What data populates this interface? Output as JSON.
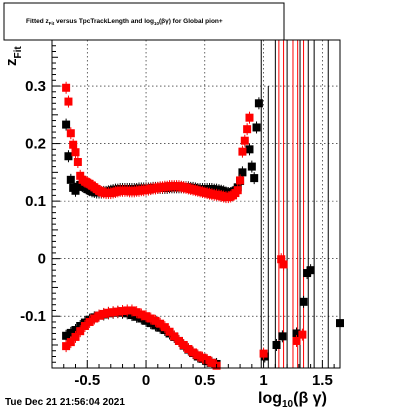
{
  "chart_data": {
    "type": "scatter",
    "title_parts": {
      "prefix": "Fitted  z",
      "sub1": "Fit",
      "middle": " versus TpcTrackLength and log",
      "sub2": "10",
      "suffix": "(βγ) for Global pion+"
    },
    "ylabel_main": "z",
    "ylabel_sub": "Fit",
    "xlabel_main": "log",
    "xlabel_sub": "10",
    "xlabel_suffix": "(β γ)",
    "xlim": [
      -0.8,
      1.65
    ],
    "ylim": [
      -0.19,
      0.38
    ],
    "x_ticks": [
      -0.5,
      0,
      0.5,
      1,
      1.5
    ],
    "x_tick_labels": [
      "-0.5",
      "0",
      "0.5",
      "1",
      "1.5"
    ],
    "y_ticks": [
      -0.1,
      0,
      0.1,
      0.2,
      0.3
    ],
    "y_tick_labels": [
      "-0.1",
      "0",
      "0.1",
      "0.2",
      "0.3"
    ],
    "grid": true,
    "timestamp": "Tue Dec 21 21:56:04 2021",
    "series": [
      {
        "color": "#000000",
        "marker": "square",
        "points": [
          [
            -0.68,
            0.233
          ],
          [
            -0.66,
            0.178
          ],
          [
            -0.64,
            0.137
          ],
          [
            -0.62,
            0.123
          ],
          [
            -0.6,
            0.118
          ],
          [
            -0.58,
            0.125
          ],
          [
            -0.56,
            0.128
          ],
          [
            -0.54,
            0.126
          ],
          [
            -0.52,
            0.124
          ],
          [
            -0.5,
            0.121
          ],
          [
            -0.48,
            0.119
          ],
          [
            -0.46,
            0.117
          ],
          [
            -0.44,
            0.116
          ],
          [
            -0.42,
            0.115
          ],
          [
            -0.4,
            0.115
          ],
          [
            -0.38,
            0.115
          ],
          [
            -0.36,
            0.116
          ],
          [
            -0.34,
            0.116
          ],
          [
            -0.32,
            0.117
          ],
          [
            -0.3,
            0.118
          ],
          [
            -0.28,
            0.119
          ],
          [
            -0.26,
            0.12
          ],
          [
            -0.24,
            0.12
          ],
          [
            -0.22,
            0.121
          ],
          [
            -0.2,
            0.121
          ],
          [
            -0.18,
            0.121
          ],
          [
            -0.16,
            0.121
          ],
          [
            -0.14,
            0.121
          ],
          [
            -0.12,
            0.121
          ],
          [
            -0.1,
            0.121
          ],
          [
            -0.08,
            0.121
          ],
          [
            -0.06,
            0.122
          ],
          [
            -0.04,
            0.122
          ],
          [
            -0.02,
            0.122
          ],
          [
            0.0,
            0.122
          ],
          [
            0.02,
            0.122
          ],
          [
            0.04,
            0.122
          ],
          [
            0.06,
            0.123
          ],
          [
            0.08,
            0.123
          ],
          [
            0.1,
            0.123
          ],
          [
            0.12,
            0.123
          ],
          [
            0.14,
            0.123
          ],
          [
            0.16,
            0.123
          ],
          [
            0.18,
            0.123
          ],
          [
            0.2,
            0.124
          ],
          [
            0.22,
            0.124
          ],
          [
            0.24,
            0.124
          ],
          [
            0.26,
            0.124
          ],
          [
            0.28,
            0.124
          ],
          [
            0.3,
            0.124
          ],
          [
            0.32,
            0.124
          ],
          [
            0.34,
            0.124
          ],
          [
            0.36,
            0.124
          ],
          [
            0.38,
            0.123
          ],
          [
            0.4,
            0.123
          ],
          [
            0.42,
            0.122
          ],
          [
            0.44,
            0.121
          ],
          [
            0.46,
            0.121
          ],
          [
            0.48,
            0.121
          ],
          [
            0.5,
            0.121
          ],
          [
            0.52,
            0.121
          ],
          [
            0.54,
            0.121
          ],
          [
            0.56,
            0.121
          ],
          [
            0.58,
            0.12
          ],
          [
            0.6,
            0.12
          ],
          [
            0.62,
            0.119
          ],
          [
            0.64,
            0.118
          ],
          [
            0.66,
            0.117
          ],
          [
            0.68,
            0.115
          ],
          [
            0.7,
            0.114
          ],
          [
            0.72,
            0.114
          ],
          [
            0.74,
            0.116
          ],
          [
            0.76,
            0.118
          ],
          [
            0.78,
            0.124
          ],
          [
            0.8,
            0.135
          ],
          [
            0.82,
            0.15
          ],
          [
            0.88,
            0.19
          ],
          [
            0.9,
            0.16
          ],
          [
            0.92,
            0.14
          ],
          [
            0.94,
            0.228
          ],
          [
            0.96,
            0.27
          ],
          [
            -0.68,
            -0.134
          ],
          [
            -0.64,
            -0.129
          ],
          [
            -0.6,
            -0.124
          ],
          [
            -0.56,
            -0.117
          ],
          [
            -0.52,
            -0.111
          ],
          [
            -0.48,
            -0.106
          ],
          [
            -0.44,
            -0.102
          ],
          [
            -0.4,
            -0.099
          ],
          [
            -0.36,
            -0.097
          ],
          [
            -0.32,
            -0.095
          ],
          [
            -0.28,
            -0.094
          ],
          [
            -0.24,
            -0.093
          ],
          [
            -0.2,
            -0.094
          ],
          [
            -0.16,
            -0.095
          ],
          [
            -0.12,
            -0.098
          ],
          [
            -0.08,
            -0.101
          ],
          [
            -0.04,
            -0.104
          ],
          [
            0.0,
            -0.108
          ],
          [
            0.04,
            -0.112
          ],
          [
            0.08,
            -0.116
          ],
          [
            0.12,
            -0.12
          ],
          [
            0.16,
            -0.124
          ],
          [
            0.2,
            -0.13
          ],
          [
            0.24,
            -0.136
          ],
          [
            0.28,
            -0.143
          ],
          [
            0.32,
            -0.151
          ],
          [
            0.36,
            -0.158
          ],
          [
            0.4,
            -0.164
          ],
          [
            0.44,
            -0.17
          ],
          [
            0.48,
            -0.174
          ],
          [
            0.52,
            -0.178
          ],
          [
            0.56,
            -0.181
          ],
          [
            0.6,
            -0.183
          ],
          [
            0.97,
            -0.195
          ],
          [
            1.01,
            -0.17
          ],
          [
            1.11,
            -0.15
          ],
          [
            1.16,
            -0.135
          ],
          [
            1.28,
            -0.13
          ],
          [
            1.34,
            -0.075
          ],
          [
            1.37,
            -0.025
          ],
          [
            1.4,
            -0.02
          ],
          [
            1.65,
            -0.112
          ]
        ]
      },
      {
        "color": "#ff0000",
        "marker": "square",
        "points": [
          [
            -0.68,
            0.297
          ],
          [
            -0.66,
            0.273
          ],
          [
            -0.64,
            0.218
          ],
          [
            -0.62,
            0.198
          ],
          [
            -0.6,
            0.185
          ],
          [
            -0.58,
            0.168
          ],
          [
            -0.56,
            0.144
          ],
          [
            -0.54,
            0.137
          ],
          [
            -0.52,
            0.134
          ],
          [
            -0.5,
            0.132
          ],
          [
            -0.48,
            0.13
          ],
          [
            -0.46,
            0.127
          ],
          [
            -0.44,
            0.124
          ],
          [
            -0.42,
            0.121
          ],
          [
            -0.4,
            0.118
          ],
          [
            -0.38,
            0.116
          ],
          [
            -0.36,
            0.115
          ],
          [
            -0.34,
            0.114
          ],
          [
            -0.32,
            0.114
          ],
          [
            -0.3,
            0.114
          ],
          [
            -0.28,
            0.115
          ],
          [
            -0.26,
            0.116
          ],
          [
            -0.24,
            0.117
          ],
          [
            -0.22,
            0.118
          ],
          [
            -0.2,
            0.118
          ],
          [
            -0.18,
            0.118
          ],
          [
            -0.16,
            0.118
          ],
          [
            -0.14,
            0.117
          ],
          [
            -0.12,
            0.117
          ],
          [
            -0.1,
            0.117
          ],
          [
            -0.08,
            0.118
          ],
          [
            -0.06,
            0.118
          ],
          [
            -0.04,
            0.119
          ],
          [
            -0.02,
            0.119
          ],
          [
            0.0,
            0.12
          ],
          [
            0.02,
            0.12
          ],
          [
            0.04,
            0.121
          ],
          [
            0.06,
            0.122
          ],
          [
            0.08,
            0.122
          ],
          [
            0.1,
            0.123
          ],
          [
            0.12,
            0.124
          ],
          [
            0.14,
            0.124
          ],
          [
            0.16,
            0.125
          ],
          [
            0.18,
            0.125
          ],
          [
            0.2,
            0.126
          ],
          [
            0.22,
            0.126
          ],
          [
            0.24,
            0.126
          ],
          [
            0.26,
            0.126
          ],
          [
            0.28,
            0.126
          ],
          [
            0.3,
            0.125
          ],
          [
            0.32,
            0.124
          ],
          [
            0.34,
            0.123
          ],
          [
            0.36,
            0.122
          ],
          [
            0.38,
            0.121
          ],
          [
            0.4,
            0.12
          ],
          [
            0.42,
            0.119
          ],
          [
            0.44,
            0.118
          ],
          [
            0.46,
            0.117
          ],
          [
            0.48,
            0.116
          ],
          [
            0.5,
            0.115
          ],
          [
            0.52,
            0.114
          ],
          [
            0.54,
            0.113
          ],
          [
            0.56,
            0.112
          ],
          [
            0.58,
            0.111
          ],
          [
            0.6,
            0.111
          ],
          [
            0.62,
            0.11
          ],
          [
            0.64,
            0.109
          ],
          [
            0.66,
            0.108
          ],
          [
            0.68,
            0.107
          ],
          [
            0.7,
            0.107
          ],
          [
            0.72,
            0.108
          ],
          [
            0.74,
            0.11
          ],
          [
            0.76,
            0.114
          ],
          [
            0.78,
            0.119
          ],
          [
            0.8,
            0.136
          ],
          [
            0.82,
            0.186
          ],
          [
            0.84,
            0.205
          ],
          [
            0.86,
            0.225
          ],
          [
            0.88,
            0.245
          ],
          [
            -0.68,
            -0.152
          ],
          [
            -0.64,
            -0.145
          ],
          [
            -0.6,
            -0.136
          ],
          [
            -0.56,
            -0.126
          ],
          [
            -0.52,
            -0.117
          ],
          [
            -0.48,
            -0.11
          ],
          [
            -0.44,
            -0.104
          ],
          [
            -0.4,
            -0.099
          ],
          [
            -0.36,
            -0.096
          ],
          [
            -0.32,
            -0.094
          ],
          [
            -0.28,
            -0.093
          ],
          [
            -0.24,
            -0.092
          ],
          [
            -0.2,
            -0.091
          ],
          [
            -0.16,
            -0.09
          ],
          [
            -0.12,
            -0.09
          ],
          [
            -0.08,
            -0.093
          ],
          [
            -0.04,
            -0.097
          ],
          [
            0.0,
            -0.1
          ],
          [
            0.04,
            -0.104
          ],
          [
            0.08,
            -0.108
          ],
          [
            0.12,
            -0.113
          ],
          [
            0.16,
            -0.119
          ],
          [
            0.2,
            -0.127
          ],
          [
            0.24,
            -0.135
          ],
          [
            0.28,
            -0.143
          ],
          [
            0.32,
            -0.15
          ],
          [
            0.36,
            -0.157
          ],
          [
            0.4,
            -0.163
          ],
          [
            0.44,
            -0.168
          ],
          [
            0.48,
            -0.172
          ],
          [
            0.52,
            -0.176
          ],
          [
            0.56,
            -0.181
          ],
          [
            0.6,
            -0.186
          ],
          [
            1.0,
            -0.165
          ],
          [
            1.15,
            -0.001
          ],
          [
            1.17,
            -0.01
          ],
          [
            1.28,
            -0.143
          ],
          [
            1.33,
            -0.132
          ]
        ]
      }
    ],
    "error_bars": [
      {
        "x": 0.98,
        "y_low": -0.19,
        "y_high": 0.38,
        "color": "#000000"
      },
      {
        "x": 1.04,
        "y_low": -0.19,
        "y_high": 0.3,
        "color": "#000000"
      },
      {
        "x": 1.1,
        "y_low": -0.19,
        "y_high": 0.38,
        "color": "#000000"
      },
      {
        "x": 1.13,
        "y_low": -0.19,
        "y_high": 0.38,
        "color": "#ff0000"
      },
      {
        "x": 1.17,
        "y_low": -0.19,
        "y_high": 0.38,
        "color": "#ff0000"
      },
      {
        "x": 1.2,
        "y_low": -0.19,
        "y_high": 0.38,
        "color": "#000000"
      },
      {
        "x": 1.25,
        "y_low": -0.19,
        "y_high": 0.38,
        "color": "#ff0000"
      },
      {
        "x": 1.29,
        "y_low": -0.19,
        "y_high": 0.38,
        "color": "#ff0000"
      },
      {
        "x": 1.31,
        "y_low": -0.19,
        "y_high": 0.38,
        "color": "#000000"
      },
      {
        "x": 1.34,
        "y_low": -0.19,
        "y_high": 0.38,
        "color": "#ff0000"
      },
      {
        "x": 1.38,
        "y_low": -0.19,
        "y_high": 0.38,
        "color": "#000000"
      },
      {
        "x": 1.43,
        "y_low": -0.19,
        "y_high": 0.38,
        "color": "#000000"
      },
      {
        "x": 1.55,
        "y_low": -0.19,
        "y_high": 0.38,
        "color": "#000000"
      }
    ]
  }
}
